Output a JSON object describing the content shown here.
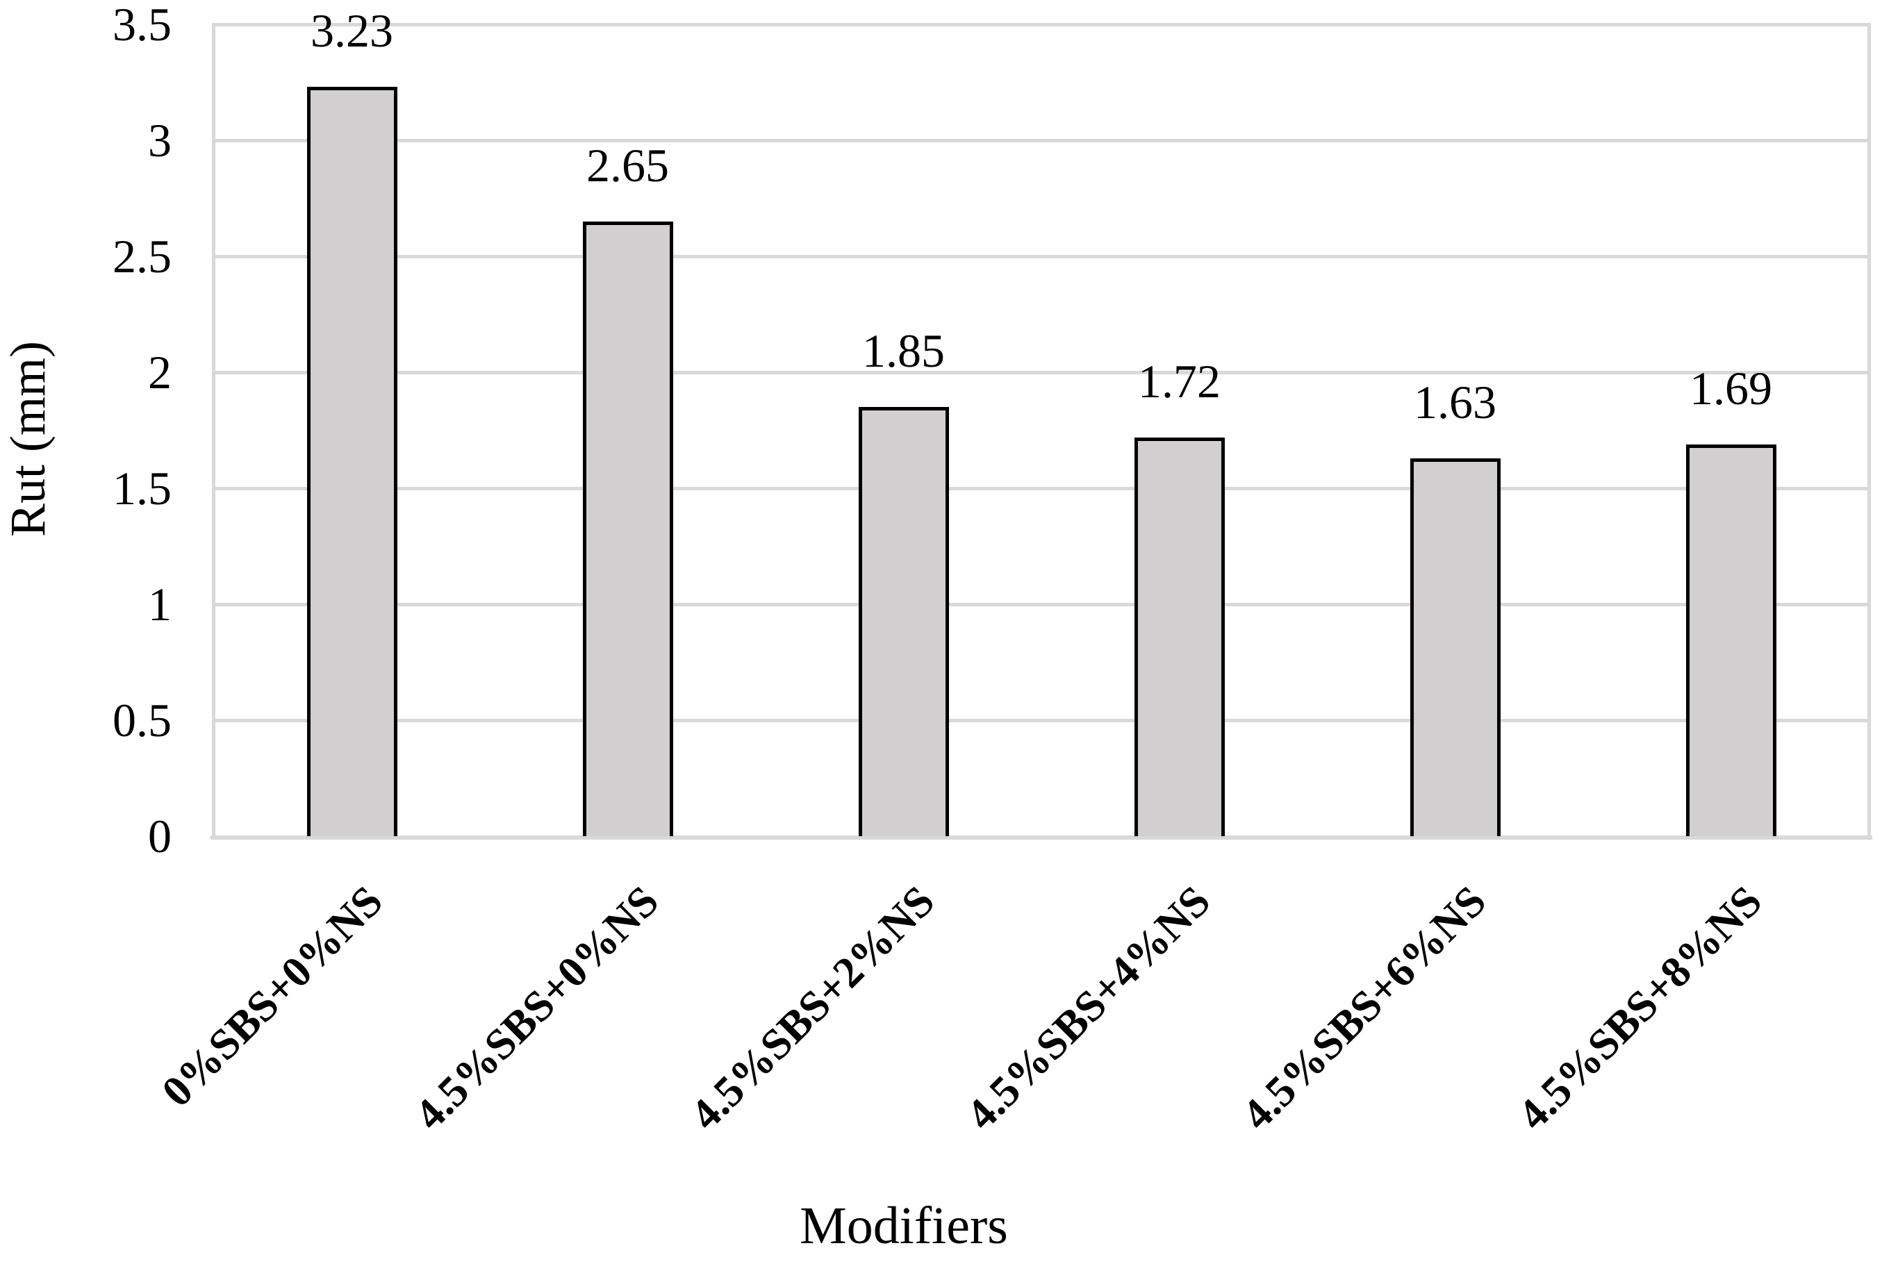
{
  "chart_data": {
    "type": "bar",
    "title": "",
    "xlabel": "Modifiers",
    "ylabel": "Rut (mm)",
    "categories": [
      "0%SBS+0%NS",
      "4.5%SBS+0%NS",
      "4.5%SBS+2%NS",
      "4.5%SBS+4%NS",
      "4.5%SBS+6%NS",
      "4.5%SBS+8%NS"
    ],
    "values": [
      3.23,
      2.65,
      1.85,
      1.72,
      1.63,
      1.69
    ],
    "value_labels": [
      "3.23",
      "2.65",
      "1.85",
      "1.72",
      "1.63",
      "1.69"
    ],
    "ylim": [
      0,
      3.5
    ],
    "y_tick_labels": [
      "3.5",
      "3",
      "2.5",
      "2",
      "1.5",
      "1",
      "0.5",
      "0"
    ],
    "y_tick_values": [
      3.5,
      3,
      2.5,
      2,
      1.5,
      1,
      0.5,
      0
    ],
    "grid": "horizontal gridlines every 0.5, light gray",
    "legend_position": "none",
    "colors": {
      "bar_fill": "#d1cfcf",
      "bar_border": "#000000",
      "gridline": "#d9d9d9",
      "axis_line": "#d9d9d9",
      "text": "#000000",
      "background": "#ffffff"
    }
  }
}
